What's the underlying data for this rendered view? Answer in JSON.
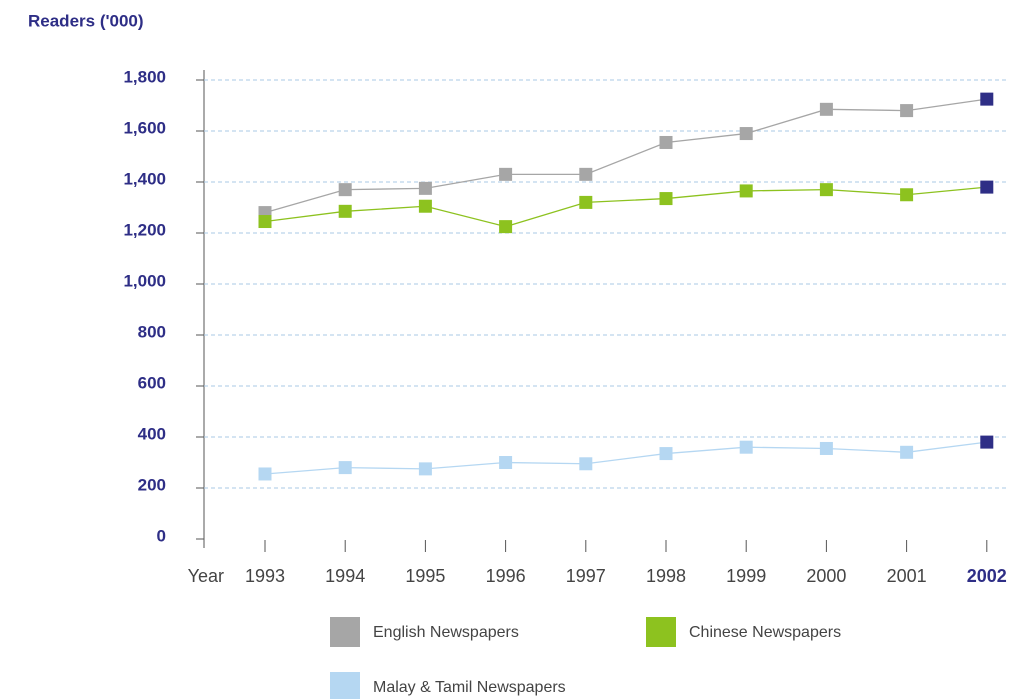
{
  "chart_data": {
    "type": "line",
    "y_axis_label": "Readers ('000)",
    "x_axis_label": "Year",
    "categories": [
      "1993",
      "1994",
      "1995",
      "1996",
      "1997",
      "1998",
      "1999",
      "2000",
      "2001",
      "2002"
    ],
    "series": [
      {
        "name": "English Newspapers",
        "color": "#a6a6a6",
        "values": [
          1280,
          1370,
          1375,
          1430,
          1430,
          1555,
          1590,
          1685,
          1680,
          1725
        ]
      },
      {
        "name": "Chinese Newspapers",
        "color": "#8dc21f",
        "values": [
          1245,
          1285,
          1305,
          1225,
          1320,
          1335,
          1365,
          1370,
          1350,
          1380
        ]
      },
      {
        "name": "Malay & Tamil Newspapers",
        "color": "#b5d7f2",
        "values": [
          255,
          280,
          275,
          300,
          295,
          335,
          360,
          355,
          340,
          380
        ]
      }
    ],
    "highlight_color": "#2e2e86",
    "ylim": [
      0,
      1800
    ],
    "yticks": [
      0,
      200,
      400,
      600,
      800,
      {
        "value": 1000,
        "label": "1,000"
      },
      {
        "value": 1200,
        "label": "1,200"
      },
      {
        "value": 1400,
        "label": "1,400"
      },
      {
        "value": 1600,
        "label": "1,600"
      },
      {
        "value": 1800,
        "label": "1,800"
      }
    ],
    "grid": true
  }
}
